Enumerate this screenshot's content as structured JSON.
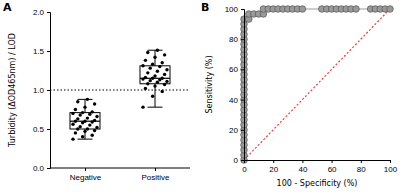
{
  "chart_data": [
    {
      "type": "box",
      "title": "A",
      "y_label": "Turbidity (ΔOD465nm) / LOD",
      "categories": [
        "Negative",
        "Positive"
      ],
      "boxes": [
        {
          "min": 0.37,
          "q1": 0.5,
          "median": 0.6,
          "q3": 0.71,
          "max": 0.88
        },
        {
          "min": 0.78,
          "q1": 1.08,
          "median": 1.15,
          "q3": 1.31,
          "max": 1.51
        }
      ],
      "points": [
        [
          0.37,
          0.4,
          0.42,
          0.45,
          0.47,
          0.48,
          0.5,
          0.5,
          0.52,
          0.53,
          0.55,
          0.56,
          0.58,
          0.59,
          0.6,
          0.6,
          0.61,
          0.63,
          0.64,
          0.66,
          0.68,
          0.69,
          0.7,
          0.71,
          0.72,
          0.75,
          0.78,
          0.82,
          0.85,
          0.88
        ],
        [
          0.78,
          0.92,
          0.98,
          1.02,
          1.05,
          1.07,
          1.08,
          1.1,
          1.11,
          1.12,
          1.13,
          1.14,
          1.15,
          1.15,
          1.16,
          1.18,
          1.2,
          1.22,
          1.24,
          1.26,
          1.28,
          1.3,
          1.31,
          1.33,
          1.35,
          1.38,
          1.42,
          1.45,
          1.48,
          1.51
        ]
      ],
      "threshold": 1,
      "color": "#000000",
      "ylim": [
        0,
        2
      ],
      "yticks": [
        {
          "value": 0,
          "label": "0.0"
        },
        0.5,
        {
          "value": 1,
          "label": "1.0"
        },
        1.5,
        {
          "value": 2,
          "label": "2.0"
        }
      ]
    },
    {
      "type": "line",
      "title": "B",
      "x_label": "100 - Specificity (%)",
      "y_label": "Sensitivity (%)",
      "series": [
        {
          "color": "#9a9a9a",
          "marker": "circle",
          "line_style": "solid",
          "x": [
            0,
            0,
            0,
            0,
            0,
            0,
            0,
            0,
            0,
            0,
            0,
            0,
            0,
            0,
            0,
            0,
            0,
            0,
            0,
            0,
            0,
            0,
            0,
            0,
            0,
            0,
            0,
            0,
            0,
            3.3,
            3.3,
            6.7,
            10,
            13.3,
            13.3,
            16.7,
            20,
            23.3,
            26.7,
            30,
            33.3,
            36.7,
            40,
            53.3,
            56.7,
            60,
            63.3,
            66.7,
            70,
            73.3,
            76.7,
            86.7,
            90,
            93.3,
            96.7,
            100
          ],
          "values": [
            0,
            3.3,
            6.7,
            10,
            13.3,
            16.7,
            20,
            23.3,
            26.7,
            30,
            33.3,
            36.7,
            40,
            43.3,
            46.7,
            50,
            53.3,
            56.7,
            60,
            63.3,
            66.7,
            70,
            73.3,
            76.7,
            80,
            83.3,
            86.7,
            90,
            93.3,
            93.3,
            96.7,
            96.7,
            96.7,
            96.7,
            100,
            100,
            100,
            100,
            100,
            100,
            100,
            100,
            100,
            100,
            100,
            100,
            100,
            100,
            100,
            100,
            100,
            100,
            100,
            100,
            100,
            100
          ]
        },
        {
          "color": "#e8413c",
          "marker": "none",
          "line_style": "dotted",
          "x": [
            0,
            100
          ],
          "values": [
            0,
            100
          ]
        }
      ],
      "xlim": [
        0,
        100
      ],
      "xticks": [
        0,
        20,
        40,
        60,
        80,
        100
      ],
      "ylim": [
        0,
        100
      ],
      "yticks": [
        0,
        20,
        40,
        60,
        80,
        100
      ]
    }
  ]
}
